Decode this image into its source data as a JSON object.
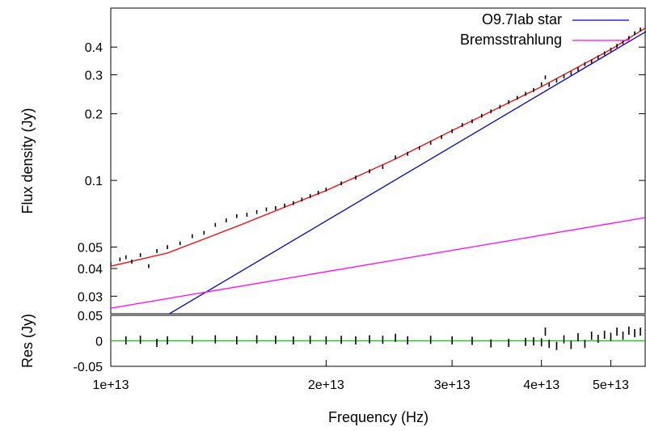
{
  "chart_data": [
    {
      "type": "line",
      "title": "",
      "xlabel": "",
      "ylabel": "Flux density (Jy)",
      "x_scale": "log",
      "y_scale": "log",
      "xlim": [
        10000000000000.0,
        56000000000000.0
      ],
      "ylim": [
        0.025,
        0.6
      ],
      "x_ticks": [],
      "y_ticks": [
        {
          "value": 0.03,
          "label": "0.03"
        },
        {
          "value": 0.04,
          "label": "0.04"
        },
        {
          "value": 0.05,
          "label": "0.05"
        },
        {
          "value": 0.1,
          "label": "0.1"
        },
        {
          "value": 0.2,
          "label": "0.2"
        },
        {
          "value": 0.3,
          "label": "0.3"
        },
        {
          "value": 0.4,
          "label": "0.4"
        }
      ],
      "legend": {
        "placement": "top-right"
      },
      "series": [
        {
          "name": "O9.7Iab star",
          "color": "#0000cc",
          "style": "line",
          "x": [
            12000000000000.0,
            56000000000000.0
          ],
          "y": [
            0.0247,
            0.47
          ]
        },
        {
          "name": "Bremsstrahlung",
          "color": "#ff00ff",
          "style": "line",
          "x": [
            10000000000000.0,
            56000000000000.0
          ],
          "y": [
            0.0265,
            0.068
          ]
        },
        {
          "name": "",
          "color": "#ff0000",
          "style": "line",
          "x": [
            10000000000000.0,
            12000000000000.0,
            15000000000000.0,
            20000000000000.0,
            25000000000000.0,
            30000000000000.0,
            40000000000000.0,
            50000000000000.0,
            56000000000000.0
          ],
          "y": [
            0.041,
            0.047,
            0.062,
            0.09,
            0.125,
            0.168,
            0.265,
            0.39,
            0.49
          ]
        },
        {
          "name": "",
          "color": "#000000",
          "style": "errorbars",
          "x": [
            10000000000000.0,
            10300000000000.0,
            10500000000000.0,
            10700000000000.0,
            11000000000000.0,
            11300000000000.0,
            11600000000000.0,
            12000000000000.0,
            12500000000000.0,
            13000000000000.0,
            13500000000000.0,
            14000000000000.0,
            14500000000000.0,
            15000000000000.0,
            15500000000000.0,
            16000000000000.0,
            16500000000000.0,
            17000000000000.0,
            17500000000000.0,
            18000000000000.0,
            18500000000000.0,
            19000000000000.0,
            19500000000000.0,
            20000000000000.0,
            21000000000000.0,
            22000000000000.0,
            23000000000000.0,
            24000000000000.0,
            25000000000000.0,
            26000000000000.0,
            27000000000000.0,
            28000000000000.0,
            29000000000000.0,
            30000000000000.0,
            31000000000000.0,
            32000000000000.0,
            33000000000000.0,
            34000000000000.0,
            35000000000000.0,
            36000000000000.0,
            37000000000000.0,
            38000000000000.0,
            39000000000000.0,
            40000000000000.0,
            40500000000000.0,
            41000000000000.0,
            42000000000000.0,
            43000000000000.0,
            44000000000000.0,
            45000000000000.0,
            46000000000000.0,
            47000000000000.0,
            48000000000000.0,
            49000000000000.0,
            50000000000000.0,
            51000000000000.0,
            52000000000000.0,
            53000000000000.0,
            54000000000000.0,
            55000000000000.0
          ],
          "y": [
            0.042,
            0.044,
            0.045,
            0.043,
            0.046,
            0.041,
            0.048,
            0.05,
            0.052,
            0.056,
            0.058,
            0.063,
            0.066,
            0.069,
            0.07,
            0.072,
            0.074,
            0.075,
            0.077,
            0.079,
            0.082,
            0.085,
            0.088,
            0.091,
            0.097,
            0.103,
            0.11,
            0.115,
            0.127,
            0.132,
            0.14,
            0.148,
            0.157,
            0.167,
            0.178,
            0.185,
            0.196,
            0.205,
            0.215,
            0.226,
            0.236,
            0.246,
            0.256,
            0.272,
            0.292,
            0.27,
            0.282,
            0.295,
            0.305,
            0.318,
            0.335,
            0.345,
            0.36,
            0.375,
            0.39,
            0.405,
            0.42,
            0.44,
            0.462,
            0.48
          ],
          "err": 0.02
        }
      ]
    },
    {
      "type": "line",
      "title": "",
      "xlabel": "Frequency (Hz)",
      "ylabel": "Res (Jy)",
      "x_scale": "log",
      "y_scale": "linear",
      "xlim": [
        10000000000000.0,
        56000000000000.0
      ],
      "ylim": [
        -0.05,
        0.05
      ],
      "x_ticks": [
        {
          "value": 10000000000000.0,
          "label": "1e+13"
        },
        {
          "value": 20000000000000.0,
          "label": "2e+13"
        },
        {
          "value": 30000000000000.0,
          "label": "3e+13"
        },
        {
          "value": 40000000000000.0,
          "label": "4e+13"
        },
        {
          "value": 50000000000000.0,
          "label": "5e+13"
        }
      ],
      "y_ticks": [
        {
          "value": -0.05,
          "label": "-0.05"
        },
        {
          "value": 0,
          "label": "0"
        },
        {
          "value": 0.05,
          "label": "0.05"
        }
      ],
      "series": [
        {
          "name": "",
          "color": "#00cc00",
          "style": "line",
          "x": [
            10000000000000.0,
            56000000000000.0
          ],
          "y": [
            0,
            0
          ]
        },
        {
          "name": "",
          "color": "#000000",
          "style": "errorbars",
          "x": [
            10500000000000.0,
            11000000000000.0,
            11600000000000.0,
            12000000000000.0,
            13000000000000.0,
            14000000000000.0,
            15000000000000.0,
            16000000000000.0,
            17000000000000.0,
            18000000000000.0,
            19000000000000.0,
            20000000000000.0,
            21000000000000.0,
            22000000000000.0,
            23000000000000.0,
            24000000000000.0,
            25000000000000.0,
            26000000000000.0,
            28000000000000.0,
            30000000000000.0,
            32000000000000.0,
            34000000000000.0,
            36000000000000.0,
            38000000000000.0,
            39000000000000.0,
            40000000000000.0,
            40500000000000.0,
            41000000000000.0,
            42000000000000.0,
            43000000000000.0,
            44000000000000.0,
            45000000000000.0,
            46000000000000.0,
            47000000000000.0,
            48000000000000.0,
            49000000000000.0,
            50000000000000.0,
            51000000000000.0,
            52000000000000.0,
            53000000000000.0,
            54000000000000.0,
            55000000000000.0
          ],
          "y": [
            0.001,
            0.002,
            -0.004,
            0.001,
            0.002,
            0.003,
            0.001,
            0.003,
            0.002,
            0.001,
            0.002,
            0.001,
            0.002,
            0.001,
            0.003,
            0.002,
            0.006,
            0.001,
            0.002,
            0.001,
            0.0,
            -0.005,
            -0.004,
            -0.002,
            -0.001,
            -0.003,
            0.018,
            -0.006,
            -0.01,
            0.003,
            -0.008,
            0.007,
            -0.006,
            0.01,
            0.004,
            0.012,
            0.008,
            0.018,
            0.01,
            0.02,
            0.015,
            0.018
          ],
          "err": 0.008
        }
      ]
    }
  ],
  "legend_entries": [
    {
      "label": "O9.7Iab star",
      "color": "#0000cc"
    },
    {
      "label": "Bremsstrahlung",
      "color": "#ff00ff"
    }
  ]
}
